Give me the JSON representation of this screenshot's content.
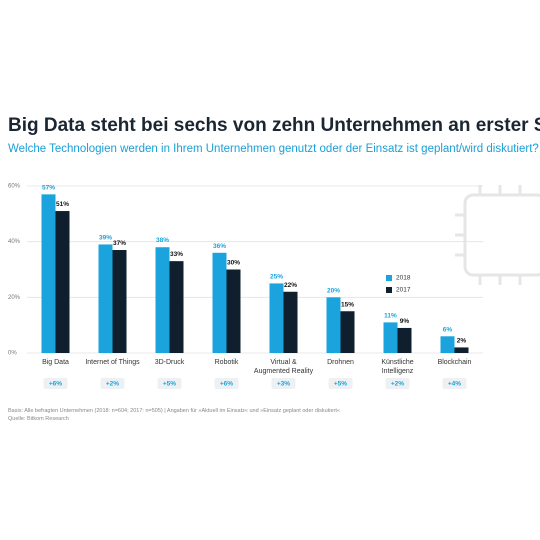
{
  "chart_data": {
    "type": "bar",
    "title": "Big Data steht bei sechs von zehn Unternehmen an erster Stelle",
    "subtitle": "Welche Technologien werden in Ihrem Unternehmen genutzt oder der Einsatz ist geplant/wird diskutiert?",
    "categories": [
      "Big Data",
      "Internet of Things",
      "3D-Druck",
      "Robotik",
      "Virtual & Augmented Reality",
      "Drohnen",
      "Künstliche Intelligenz",
      "Blockchain"
    ],
    "series": [
      {
        "name": "2018",
        "color": "#1aa3dc",
        "values": [
          57,
          39,
          38,
          36,
          25,
          20,
          11,
          6
        ],
        "value_labels": [
          "57%",
          "39%",
          "38%",
          "36%",
          "25%",
          "20%",
          "11%",
          "6%"
        ]
      },
      {
        "name": "2017",
        "color": "#0f1f2e",
        "values": [
          51,
          37,
          33,
          30,
          22,
          15,
          9,
          2
        ],
        "value_labels": [
          "51%",
          "37%",
          "33%",
          "30%",
          "22%",
          "15%",
          "9%",
          "2%"
        ]
      }
    ],
    "changes": [
      "+6%",
      "+2%",
      "+5%",
      "+6%",
      "+3%",
      "+5%",
      "+2%",
      "+4%"
    ],
    "ylim": [
      0,
      60
    ],
    "yticks": [
      {
        "value": 0,
        "label": "0%"
      },
      {
        "value": 20,
        "label": "20%"
      },
      {
        "value": 40,
        "label": "40%"
      },
      {
        "value": 60,
        "label": "60%"
      }
    ],
    "grid": true,
    "legend": "right",
    "footnote": "Basis: Alle befragten Unternehmen (2018: n=604; 2017: n=505) | Angaben für »Aktuell im Einsatz« und »Einsatz geplant oder diskutiert«",
    "source": "Quelle: Bitkom Research"
  }
}
